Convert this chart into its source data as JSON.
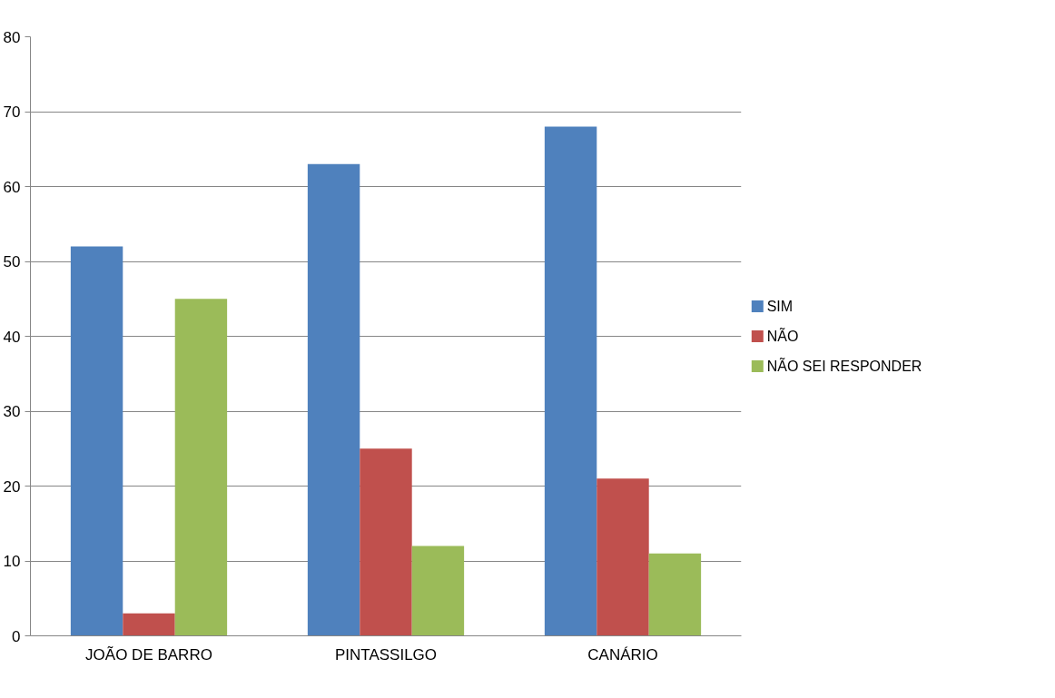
{
  "chart_data": {
    "type": "bar",
    "categories": [
      "JOÃO DE BARRO",
      "PINTASSILGO",
      "CANÁRIO"
    ],
    "series": [
      {
        "name": "SIM",
        "color": "#4f81bd",
        "values": [
          52,
          63,
          68
        ]
      },
      {
        "name": "NÃO",
        "color": "#c0504d",
        "values": [
          3,
          25,
          21
        ]
      },
      {
        "name": "NÃO SEI RESPONDER",
        "color": "#9bbb59",
        "values": [
          45,
          12,
          11
        ]
      }
    ],
    "ylim": [
      0,
      80
    ],
    "yticks": [
      0,
      10,
      20,
      30,
      40,
      50,
      60,
      70,
      80
    ],
    "grid": "y",
    "legend": "right"
  }
}
